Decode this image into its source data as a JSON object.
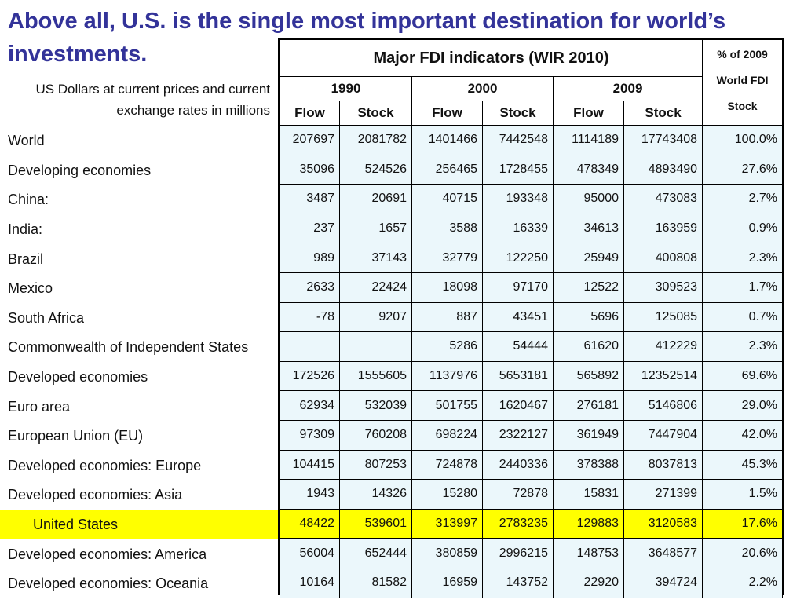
{
  "slide": {
    "title": "Above all, U.S. is the single most important destination for world’s investments.",
    "subtitle": "US Dollars at current prices and current exchange rates in millions"
  },
  "table": {
    "title": "Major FDI indicators (WIR 2010)",
    "pct_header": "% of 2009 World FDI Stock",
    "years": [
      "1990",
      "2000",
      "2009"
    ],
    "subheaders": [
      "Flow",
      "Stock",
      "Flow",
      "Stock",
      "Flow",
      "Stock"
    ],
    "rows": [
      {
        "label": "World",
        "values": [
          "207697",
          "2081782",
          "1401466",
          "7442548",
          "1114189",
          "17743408",
          "100.0%"
        ]
      },
      {
        "label": "Developing economies",
        "values": [
          "35096",
          "524526",
          "256465",
          "1728455",
          "478349",
          "4893490",
          "27.6%"
        ]
      },
      {
        "label": "China:",
        "values": [
          "3487",
          "20691",
          "40715",
          "193348",
          "95000",
          "473083",
          "2.7%"
        ]
      },
      {
        "label": "India:",
        "values": [
          "237",
          "1657",
          "3588",
          "16339",
          "34613",
          "163959",
          "0.9%"
        ]
      },
      {
        "label": "Brazil",
        "values": [
          "989",
          "37143",
          "32779",
          "122250",
          "25949",
          "400808",
          "2.3%"
        ]
      },
      {
        "label": "Mexico",
        "values": [
          "2633",
          "22424",
          "18098",
          "97170",
          "12522",
          "309523",
          "1.7%"
        ]
      },
      {
        "label": "South Africa",
        "values": [
          "-78",
          "9207",
          "887",
          "43451",
          "5696",
          "125085",
          "0.7%"
        ]
      },
      {
        "label": "Commonwealth of Independent States",
        "values": [
          "",
          "",
          "5286",
          "54444",
          "61620",
          "412229",
          "2.3%"
        ]
      },
      {
        "label": "Developed economies",
        "values": [
          "172526",
          "1555605",
          "1137976",
          "5653181",
          "565892",
          "12352514",
          "69.6%"
        ]
      },
      {
        "label": "Euro area",
        "values": [
          "62934",
          "532039",
          "501755",
          "1620467",
          "276181",
          "5146806",
          "29.0%"
        ]
      },
      {
        "label": "European Union (EU)",
        "values": [
          "97309",
          "760208",
          "698224",
          "2322127",
          "361949",
          "7447904",
          "42.0%"
        ]
      },
      {
        "label": "Developed economies: Europe",
        "values": [
          "104415",
          "807253",
          "724878",
          "2440336",
          "378388",
          "8037813",
          "45.3%"
        ]
      },
      {
        "label": "Developed economies: Asia",
        "values": [
          "1943",
          "14326",
          "15280",
          "72878",
          "15831",
          "271399",
          "1.5%"
        ]
      },
      {
        "label": "United States",
        "values": [
          "48422",
          "539601",
          "313997",
          "2783235",
          "129883",
          "3120583",
          "17.6%"
        ],
        "highlight": true
      },
      {
        "label": "Developed economies: America",
        "values": [
          "56004",
          "652444",
          "380859",
          "2996215",
          "148753",
          "3648577",
          "20.6%"
        ]
      },
      {
        "label": "Developed economies: Oceania",
        "values": [
          "10164",
          "81582",
          "16959",
          "143752",
          "22920",
          "394724",
          "2.2%"
        ]
      }
    ]
  },
  "colors": {
    "title": "#333399",
    "cell_background": "#ebf7fb",
    "highlight": "#ffff00"
  }
}
